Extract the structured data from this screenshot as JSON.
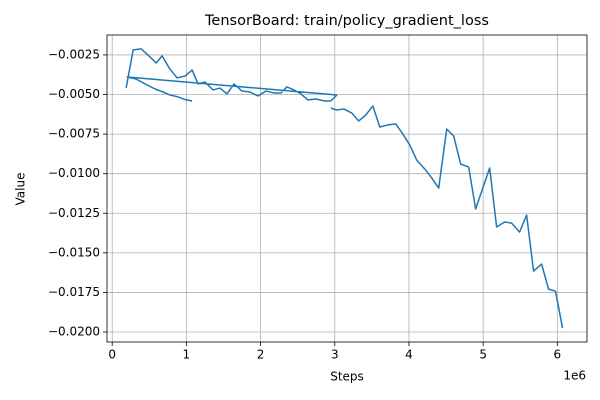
{
  "chart_data": {
    "type": "line",
    "title": "TensorBoard: train/policy_gradient_loss",
    "x_label": "Steps",
    "y_label": "Value",
    "x_offset_label": "1e6",
    "color": "#1f77b4",
    "grid": true,
    "x": [
      188000,
      283000,
      390000,
      525000,
      592000,
      673000,
      767000,
      875000,
      983000,
      1077000,
      1157000,
      1251000,
      1359000,
      1453000,
      1548000,
      1642000,
      1750000,
      1857000,
      1965000,
      2073000,
      2180000,
      2275000,
      2355000,
      2450000,
      2544000,
      2638000,
      2746000,
      2867000,
      2947000,
      3028000,
      202000,
      323000,
      471000,
      579000,
      686000,
      780000,
      888000,
      996000,
      1077000,
      null,
      2947000,
      3028000,
      3122000,
      3230000,
      3324000,
      3419000,
      3513000,
      3607000,
      3715000,
      3822000,
      3917000,
      4011000,
      4105000,
      4213000,
      4307000,
      4401000,
      4509000,
      4603000,
      4697000,
      4805000,
      4899000,
      5088000,
      5182000,
      5290000,
      5384000,
      5491000,
      5586000,
      5680000,
      5788000,
      5882000,
      5976000,
      6070000
    ],
    "values": [
      -0.00459,
      -0.00218,
      -0.00212,
      -0.00269,
      -0.00301,
      -0.00256,
      -0.00332,
      -0.00395,
      -0.00383,
      -0.00345,
      -0.00433,
      -0.00421,
      -0.00471,
      -0.00459,
      -0.00496,
      -0.00433,
      -0.00478,
      -0.00484,
      -0.00509,
      -0.00478,
      -0.0049,
      -0.0049,
      -0.00452,
      -0.00471,
      -0.00496,
      -0.00534,
      -0.00528,
      -0.00541,
      -0.00541,
      -0.00503,
      -0.00389,
      -0.00402,
      -0.0044,
      -0.00465,
      -0.00484,
      -0.00503,
      -0.00515,
      -0.00534,
      -0.00541,
      null,
      -0.00585,
      -0.00598,
      -0.00591,
      -0.00617,
      -0.00667,
      -0.00629,
      -0.00572,
      -0.00705,
      -0.00692,
      -0.00686,
      -0.00749,
      -0.00819,
      -0.00914,
      -0.0097,
      -0.01027,
      -0.01091,
      -0.00718,
      -0.00762,
      -0.00939,
      -0.00958,
      -0.01223,
      -0.00964,
      -0.01337,
      -0.01305,
      -0.01312,
      -0.01369,
      -0.01261,
      -0.01615,
      -0.01571,
      -0.01729,
      -0.01742,
      -0.01975
    ],
    "xlim": [
      -70000,
      6400000
    ],
    "xticks": [
      {
        "value": 0,
        "label": "0"
      },
      {
        "value": 1000000,
        "label": "1"
      },
      {
        "value": 2000000,
        "label": "2"
      },
      {
        "value": 3000000,
        "label": "3"
      },
      {
        "value": 4000000,
        "label": "4"
      },
      {
        "value": 5000000,
        "label": "5"
      },
      {
        "value": 6000000,
        "label": "6"
      }
    ],
    "ylim": [
      -0.02063,
      -0.00124
    ],
    "yticks": [
      {
        "value": -0.0025,
        "label": "−0.0025"
      },
      {
        "value": -0.005,
        "label": "−0.0050"
      },
      {
        "value": -0.0075,
        "label": "−0.0075"
      },
      {
        "value": -0.01,
        "label": "−0.0100"
      },
      {
        "value": -0.0125,
        "label": "−0.0125"
      },
      {
        "value": -0.015,
        "label": "−0.0150"
      },
      {
        "value": -0.0175,
        "label": "−0.0175"
      },
      {
        "value": -0.02,
        "label": "−0.0200"
      }
    ]
  }
}
